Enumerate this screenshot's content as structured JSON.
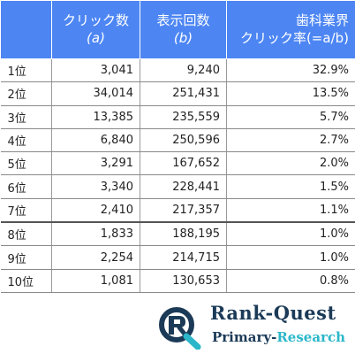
{
  "table": {
    "headers": [
      {
        "line1": "",
        "line2": ""
      },
      {
        "line1": "クリック数",
        "line2": "(a)"
      },
      {
        "line1": "表示回数",
        "line2": "(b)"
      },
      {
        "line1": "歯科業界",
        "line2": "クリック率(=a/b)"
      }
    ],
    "rows": [
      {
        "rank": "1位",
        "clicks": "3,041",
        "impressions": "9,240",
        "ctr": "32.9%"
      },
      {
        "rank": "2位",
        "clicks": "34,014",
        "impressions": "251,431",
        "ctr": "13.5%"
      },
      {
        "rank": "3位",
        "clicks": "13,385",
        "impressions": "235,559",
        "ctr": "5.7%"
      },
      {
        "rank": "4位",
        "clicks": "6,840",
        "impressions": "250,596",
        "ctr": "2.7%"
      },
      {
        "rank": "5位",
        "clicks": "3,291",
        "impressions": "167,652",
        "ctr": "2.0%"
      },
      {
        "rank": "6位",
        "clicks": "3,340",
        "impressions": "228,441",
        "ctr": "1.5%"
      },
      {
        "rank": "7位",
        "clicks": "2,410",
        "impressions": "217,357",
        "ctr": "1.1%"
      },
      {
        "rank": "8位",
        "clicks": "1,833",
        "impressions": "188,195",
        "ctr": "1.0%"
      },
      {
        "rank": "9位",
        "clicks": "2,254",
        "impressions": "214,715",
        "ctr": "1.0%"
      },
      {
        "rank": "10位",
        "clicks": "1,081",
        "impressions": "130,653",
        "ctr": "0.8%"
      }
    ],
    "header_color": "#4d86f3"
  },
  "logo": {
    "title": "Rank-Quest",
    "subtitle_a": "Primary-",
    "subtitle_b": "Research",
    "primary_color": "#1b3a57",
    "accent_color": "#2bb7c9"
  }
}
